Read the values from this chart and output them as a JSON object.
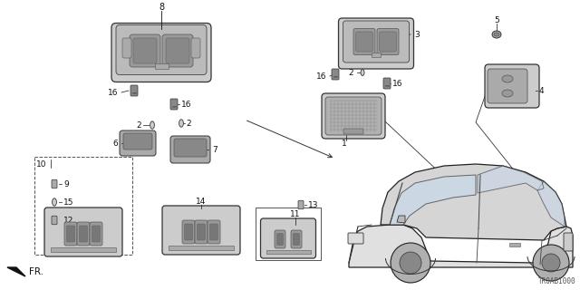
{
  "bg_color": "#ffffff",
  "diagram_code": "TR0AB1000",
  "lw_thin": 0.6,
  "lw_med": 0.9,
  "lw_thick": 1.2,
  "ec": "#222222",
  "fc_light": "#e8e8e8",
  "fc_dark": "#555555",
  "fc_mid": "#aaaaaa",
  "label_fs": 6.5,
  "label_color": "#111111"
}
